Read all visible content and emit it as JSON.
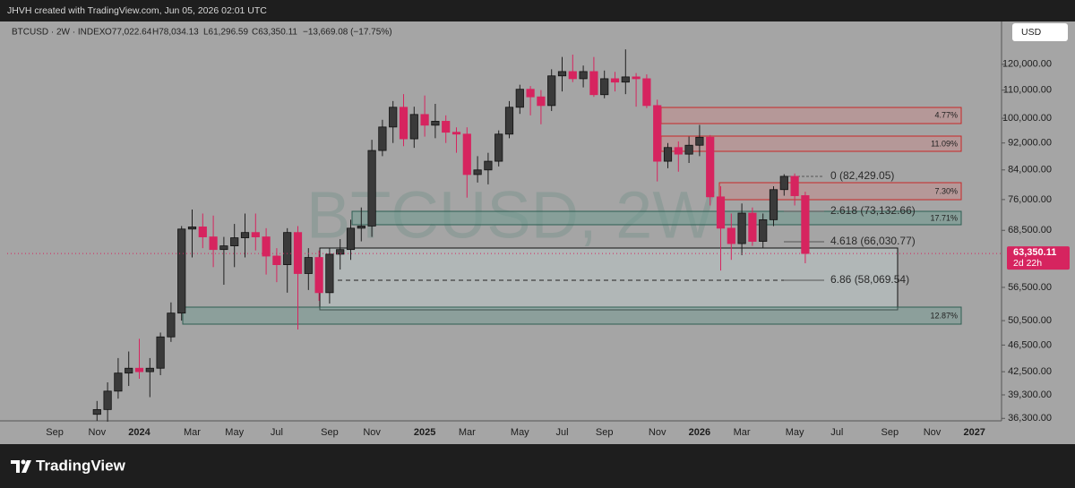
{
  "top_bar": "JHVH created with TradingView.com, Jun 05, 2026 02:01 UTC",
  "header": {
    "symbol": "BTCUSD · 2W · INDEX",
    "open": "O77,022.64",
    "high": "H78,034.13",
    "low": "L61,296.59",
    "close": "C63,350.11",
    "change": "−13,669.08 (−17.75%)"
  },
  "currency": "USD",
  "watermark": "BTCUSD, 2W",
  "footer_logo": "TradingView",
  "zones": [
    {
      "label": "4.77%"
    },
    {
      "label": "11.09%"
    },
    {
      "label": "7.30%"
    },
    {
      "label": "17.71%"
    },
    {
      "label": "12.87%"
    }
  ],
  "fib_levels": [
    {
      "label": "0 (82,429.05)"
    },
    {
      "label": "2.618 (73,132.66)"
    },
    {
      "label": "4.618 (66,030.77)"
    },
    {
      "label": "6.86 (58,069.54)"
    }
  ],
  "last_price_label": "63,350.11",
  "countdown": "2d 22h",
  "chart_data": {
    "type": "candlestick",
    "log_scale": true,
    "up_color": "#3a3a3a",
    "down_color": "#d6245f",
    "categories": [
      null,
      null,
      null,
      null,
      "Sep",
      null,
      null,
      null,
      "Nov",
      null,
      null,
      null,
      "2024",
      null,
      null,
      null,
      null,
      "Mar",
      null,
      null,
      null,
      "May",
      null,
      null,
      null,
      "Jul",
      null,
      null,
      null,
      null,
      "Sep",
      null,
      null,
      null,
      "Nov",
      null,
      null,
      null,
      null,
      "2025",
      null,
      null,
      null,
      "Mar",
      null,
      null,
      null,
      null,
      "May",
      null,
      null,
      null,
      "Jul",
      null,
      null,
      null,
      "Sep",
      null,
      null,
      null,
      null,
      "Nov",
      null,
      null,
      null,
      "2026",
      null,
      null,
      null,
      "Mar",
      null,
      null,
      null,
      null,
      "May",
      null,
      null,
      null,
      "Jul",
      null,
      null,
      null,
      null,
      "Sep",
      null,
      null,
      null,
      "Nov",
      null,
      null,
      null,
      "2027",
      null,
      null
    ],
    "open": [
      null,
      null,
      null,
      null,
      null,
      null,
      null,
      null,
      36800,
      37400,
      39800,
      42300,
      43000,
      42500,
      43000,
      47800,
      51800,
      68800,
      69300,
      67000,
      64200,
      65000,
      66800,
      68000,
      67000,
      62800,
      61000,
      68000,
      59200,
      62500,
      55500,
      63200,
      64200,
      69000,
      69500,
      89700,
      97100,
      103800,
      93300,
      101300,
      97700,
      99000,
      95400,
      94800,
      82700,
      84000,
      86500,
      94800,
      103800,
      110300,
      107500,
      104400,
      115400,
      117100,
      114300,
      117100,
      108300,
      114300,
      113000,
      115000,
      114300,
      104400,
      86500,
      90600,
      88600,
      91300,
      93800,
      76700,
      69000,
      65500,
      72600,
      66000,
      71000,
      78600,
      82200,
      77022.64,
      null,
      null,
      null,
      null,
      null,
      null,
      null,
      null,
      null,
      null,
      null,
      null,
      null,
      null,
      null,
      null,
      null,
      null
    ],
    "high": [
      null,
      null,
      null,
      null,
      null,
      null,
      null,
      null,
      38500,
      41000,
      44500,
      45500,
      47500,
      44500,
      48500,
      53700,
      69500,
      73500,
      72500,
      72000,
      67000,
      70000,
      72500,
      72500,
      69000,
      64500,
      69000,
      69500,
      64500,
      64000,
      64500,
      66500,
      71000,
      74000,
      93000,
      99500,
      106000,
      108500,
      104000,
      108000,
      105000,
      101000,
      97000,
      97000,
      88000,
      89000,
      96000,
      106000,
      112000,
      111500,
      110000,
      118000,
      123000,
      124000,
      119500,
      123000,
      117500,
      117000,
      126200,
      116500,
      116000,
      106500,
      92000,
      92500,
      94000,
      97800,
      94500,
      79500,
      72500,
      75000,
      74000,
      72500,
      79500,
      82800,
      83000,
      78034.13,
      null,
      null,
      null,
      null,
      null,
      null,
      null,
      null,
      null,
      null,
      null,
      null,
      null,
      null,
      null,
      null,
      null,
      null
    ],
    "low": [
      null,
      null,
      null,
      null,
      null,
      null,
      null,
      null,
      36000,
      35900,
      38800,
      40500,
      41500,
      39000,
      42000,
      47000,
      50500,
      62500,
      64500,
      60500,
      57000,
      60500,
      62500,
      64000,
      59000,
      57500,
      55500,
      49000,
      56000,
      54000,
      53500,
      60000,
      62000,
      66000,
      67000,
      88000,
      92000,
      91000,
      90500,
      94000,
      93500,
      92000,
      89000,
      76500,
      80500,
      80000,
      85000,
      93500,
      101500,
      101000,
      98000,
      102500,
      109500,
      113000,
      111000,
      107500,
      107000,
      109500,
      108500,
      104000,
      103500,
      80800,
      84500,
      83500,
      86000,
      88000,
      74500,
      59800,
      62000,
      63000,
      65000,
      64500,
      69500,
      77000,
      74500,
      61296.59,
      null,
      null,
      null,
      null,
      null,
      null,
      null,
      null,
      null,
      null,
      null,
      null,
      null,
      null,
      null,
      null,
      null,
      null
    ],
    "close": [
      null,
      null,
      null,
      null,
      null,
      null,
      null,
      null,
      37400,
      39800,
      42300,
      43000,
      42500,
      43000,
      47800,
      51800,
      68800,
      69300,
      67000,
      64200,
      65000,
      66800,
      68000,
      67000,
      62800,
      61000,
      68000,
      59200,
      62500,
      55500,
      63200,
      64200,
      69000,
      69500,
      89700,
      97100,
      103800,
      93300,
      101300,
      97700,
      99000,
      95400,
      94800,
      82700,
      84000,
      86500,
      94800,
      103800,
      110300,
      107500,
      104400,
      115400,
      117100,
      114300,
      117100,
      108300,
      114300,
      113000,
      115000,
      114300,
      104400,
      86500,
      90600,
      88600,
      91300,
      93800,
      76700,
      69000,
      65500,
      72600,
      66000,
      71000,
      78600,
      82200,
      77000,
      63350.11,
      null,
      null,
      null,
      null,
      null,
      null,
      null,
      null,
      null,
      null,
      null,
      null,
      null,
      null,
      null,
      null,
      null,
      null
    ],
    "ylim": [
      36000,
      137000
    ],
    "yticks": [
      {
        "value": 120000,
        "label": "120,000.00"
      },
      {
        "value": 110000,
        "label": "110,000.00"
      },
      {
        "value": 100000,
        "label": "100,000.00"
      },
      {
        "value": 92000,
        "label": "92,000.00"
      },
      {
        "value": 84000,
        "label": "84,000.00"
      },
      {
        "value": 76000,
        "label": "76,000.00"
      },
      {
        "value": 68500,
        "label": "68,500.00"
      },
      {
        "value": 56500,
        "label": "56,500.00"
      },
      {
        "value": 50500,
        "label": "50,500.00"
      },
      {
        "value": 46500,
        "label": "46,500.00"
      },
      {
        "value": 42500,
        "label": "42,500.00"
      },
      {
        "value": 39300,
        "label": "39,300.00"
      },
      {
        "value": 36300,
        "label": "36,300.00"
      }
    ]
  }
}
